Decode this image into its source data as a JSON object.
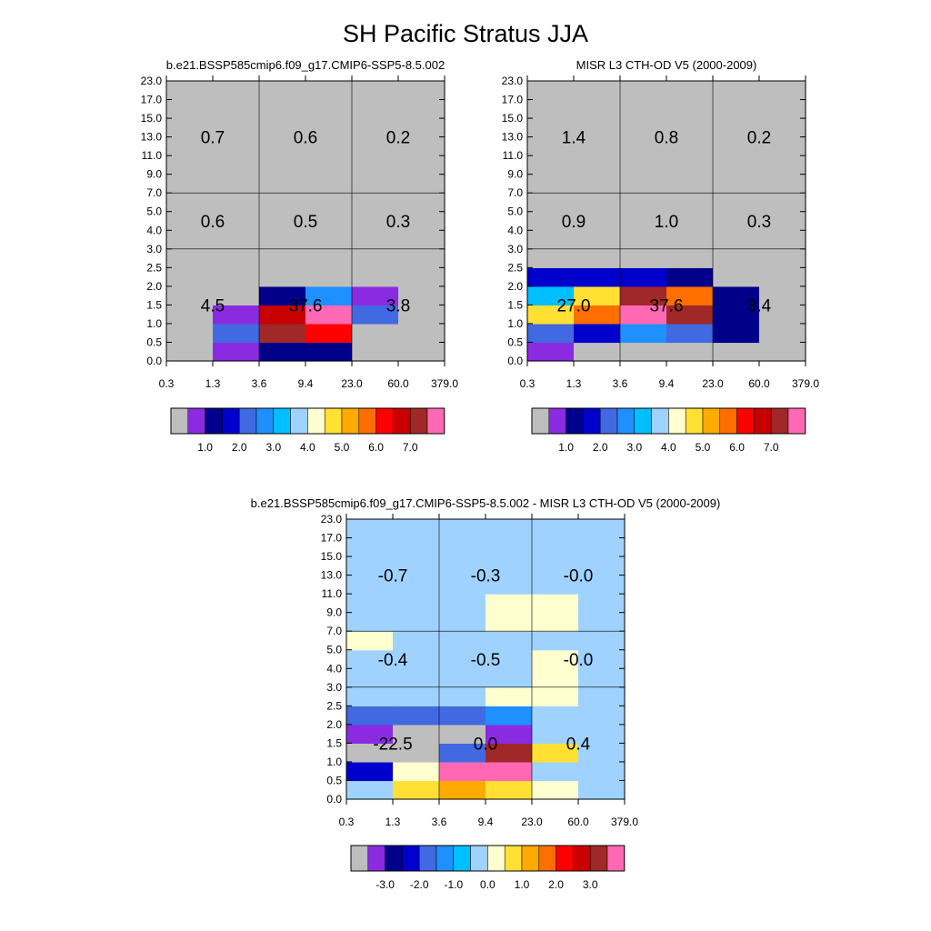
{
  "figure_title": "SH Pacific Stratus JJA",
  "palette": [
    "#bebebe",
    "#8a2be2",
    "#00008b",
    "#0000cd",
    "#4169e1",
    "#1e90ff",
    "#00bfff",
    "#a0d2ff",
    "#ffffd0",
    "#ffe033",
    "#ffaa00",
    "#ff6e00",
    "#ff0000",
    "#c80000",
    "#a02828",
    "#ff69b4"
  ],
  "chart_data": [
    {
      "type": "heatmap",
      "title": "b.e21.BSSP585cmip6.f09_g17.CMIP6-SSP5-8.5.002",
      "xlabel": "",
      "ylabel": "",
      "x_tick_labels": [
        "0.3",
        "1.3",
        "3.6",
        "9.4",
        "23.0",
        "60.0",
        "379.0"
      ],
      "y_tick_labels": [
        "0.0",
        "0.5",
        "1.0",
        "1.5",
        "2.0",
        "2.5",
        "3.0",
        "4.0",
        "5.0",
        "7.0",
        "9.0",
        "11.0",
        "13.0",
        "15.0",
        "17.0",
        "23.0"
      ],
      "cell_color_index": [
        [
          0,
          1,
          2,
          2,
          0,
          0
        ],
        [
          0,
          4,
          14,
          12,
          0,
          0
        ],
        [
          0,
          1,
          13,
          15,
          4,
          0
        ],
        [
          0,
          0,
          2,
          5,
          1,
          0
        ],
        [
          0,
          0,
          0,
          0,
          0,
          0
        ],
        [
          0,
          0,
          0,
          0,
          0,
          0
        ],
        [
          0,
          0,
          0,
          0,
          0,
          0
        ],
        [
          0,
          0,
          0,
          0,
          0,
          0
        ],
        [
          0,
          0,
          0,
          0,
          0,
          0
        ],
        [
          0,
          0,
          0,
          0,
          0,
          0
        ],
        [
          0,
          0,
          0,
          0,
          0,
          0
        ],
        [
          0,
          0,
          0,
          0,
          0,
          0
        ],
        [
          0,
          0,
          0,
          0,
          0,
          0
        ],
        [
          0,
          0,
          0,
          0,
          0,
          0
        ],
        [
          0,
          0,
          0,
          0,
          0,
          0
        ]
      ],
      "region_values": [
        {
          "xbin": 0,
          "ybin": 0,
          "value": "4.5"
        },
        {
          "xbin": 1,
          "ybin": 0,
          "value": "37.6"
        },
        {
          "xbin": 2,
          "ybin": 0,
          "value": "3.8"
        },
        {
          "xbin": 0,
          "ybin": 1,
          "value": "0.6"
        },
        {
          "xbin": 1,
          "ybin": 1,
          "value": "0.5"
        },
        {
          "xbin": 2,
          "ybin": 1,
          "value": "0.3"
        },
        {
          "xbin": 0,
          "ybin": 2,
          "value": "0.7"
        },
        {
          "xbin": 1,
          "ybin": 2,
          "value": "0.6"
        },
        {
          "xbin": 2,
          "ybin": 2,
          "value": "0.2"
        }
      ],
      "colorbar": {
        "labels": [
          "1.0",
          "2.0",
          "3.0",
          "4.0",
          "5.0",
          "6.0",
          "7.0"
        ]
      }
    },
    {
      "type": "heatmap",
      "title": "MISR L3 CTH-OD V5 (2000-2009)",
      "xlabel": "",
      "ylabel": "",
      "x_tick_labels": [
        "0.3",
        "1.3",
        "3.6",
        "9.4",
        "23.0",
        "60.0",
        "379.0"
      ],
      "y_tick_labels": [
        "0.0",
        "0.5",
        "1.0",
        "1.5",
        "2.0",
        "2.5",
        "3.0",
        "4.0",
        "5.0",
        "7.0",
        "9.0",
        "11.0",
        "13.0",
        "15.0",
        "17.0",
        "23.0"
      ],
      "cell_color_index": [
        [
          1,
          0,
          0,
          0,
          0,
          0
        ],
        [
          4,
          3,
          5,
          4,
          2,
          0
        ],
        [
          9,
          11,
          15,
          14,
          2,
          0
        ],
        [
          6,
          9,
          14,
          11,
          2,
          0
        ],
        [
          3,
          3,
          3,
          2,
          0,
          0
        ],
        [
          0,
          0,
          0,
          0,
          0,
          0
        ],
        [
          0,
          0,
          0,
          0,
          0,
          0
        ],
        [
          0,
          0,
          0,
          0,
          0,
          0
        ],
        [
          0,
          0,
          0,
          0,
          0,
          0
        ],
        [
          0,
          0,
          0,
          0,
          0,
          0
        ],
        [
          0,
          0,
          0,
          0,
          0,
          0
        ],
        [
          0,
          0,
          0,
          0,
          0,
          0
        ],
        [
          0,
          0,
          0,
          0,
          0,
          0
        ],
        [
          0,
          0,
          0,
          0,
          0,
          0
        ],
        [
          0,
          0,
          0,
          0,
          0,
          0
        ]
      ],
      "region_values": [
        {
          "xbin": 0,
          "ybin": 0,
          "value": "27.0"
        },
        {
          "xbin": 1,
          "ybin": 0,
          "value": "37.6"
        },
        {
          "xbin": 2,
          "ybin": 0,
          "value": "3.4"
        },
        {
          "xbin": 0,
          "ybin": 1,
          "value": "0.9"
        },
        {
          "xbin": 1,
          "ybin": 1,
          "value": "1.0"
        },
        {
          "xbin": 2,
          "ybin": 1,
          "value": "0.3"
        },
        {
          "xbin": 0,
          "ybin": 2,
          "value": "1.4"
        },
        {
          "xbin": 1,
          "ybin": 2,
          "value": "0.8"
        },
        {
          "xbin": 2,
          "ybin": 2,
          "value": "0.2"
        }
      ],
      "colorbar": {
        "labels": [
          "1.0",
          "2.0",
          "3.0",
          "4.0",
          "5.0",
          "6.0",
          "7.0"
        ]
      }
    },
    {
      "type": "heatmap",
      "title": "b.e21.BSSP585cmip6.f09_g17.CMIP6-SSP5-8.5.002 - MISR L3 CTH-OD V5 (2000-2009)",
      "xlabel": "",
      "ylabel": "",
      "x_tick_labels": [
        "0.3",
        "1.3",
        "3.6",
        "9.4",
        "23.0",
        "60.0",
        "379.0"
      ],
      "y_tick_labels": [
        "0.0",
        "0.5",
        "1.0",
        "1.5",
        "2.0",
        "2.5",
        "3.0",
        "4.0",
        "5.0",
        "7.0",
        "9.0",
        "11.0",
        "13.0",
        "15.0",
        "17.0",
        "23.0"
      ],
      "cell_color_index": [
        [
          7,
          9,
          10,
          9,
          8,
          7
        ],
        [
          3,
          8,
          15,
          15,
          7,
          7
        ],
        [
          0,
          0,
          4,
          14,
          9,
          7
        ],
        [
          1,
          0,
          0,
          1,
          7,
          7
        ],
        [
          4,
          4,
          4,
          5,
          7,
          7
        ],
        [
          7,
          7,
          7,
          8,
          8,
          7
        ],
        [
          7,
          7,
          7,
          7,
          8,
          7
        ],
        [
          7,
          7,
          7,
          7,
          8,
          7
        ],
        [
          8,
          7,
          7,
          7,
          7,
          7
        ],
        [
          7,
          7,
          7,
          8,
          8,
          7
        ],
        [
          7,
          7,
          7,
          8,
          8,
          7
        ],
        [
          7,
          7,
          7,
          7,
          7,
          7
        ],
        [
          7,
          7,
          7,
          7,
          7,
          7
        ],
        [
          7,
          7,
          7,
          7,
          7,
          7
        ],
        [
          7,
          7,
          7,
          7,
          7,
          7
        ]
      ],
      "region_values": [
        {
          "xbin": 0,
          "ybin": 0,
          "value": "-22.5"
        },
        {
          "xbin": 1,
          "ybin": 0,
          "value": "0.0"
        },
        {
          "xbin": 2,
          "ybin": 0,
          "value": "0.4"
        },
        {
          "xbin": 0,
          "ybin": 1,
          "value": "-0.4"
        },
        {
          "xbin": 1,
          "ybin": 1,
          "value": "-0.5"
        },
        {
          "xbin": 2,
          "ybin": 1,
          "value": "-0.0"
        },
        {
          "xbin": 0,
          "ybin": 2,
          "value": "-0.7"
        },
        {
          "xbin": 1,
          "ybin": 2,
          "value": "-0.3"
        },
        {
          "xbin": 2,
          "ybin": 2,
          "value": "-0.0"
        }
      ],
      "colorbar": {
        "labels": [
          "-3.0",
          "-2.0",
          "-1.0",
          "0.0",
          "1.0",
          "2.0",
          "3.0"
        ]
      }
    }
  ]
}
